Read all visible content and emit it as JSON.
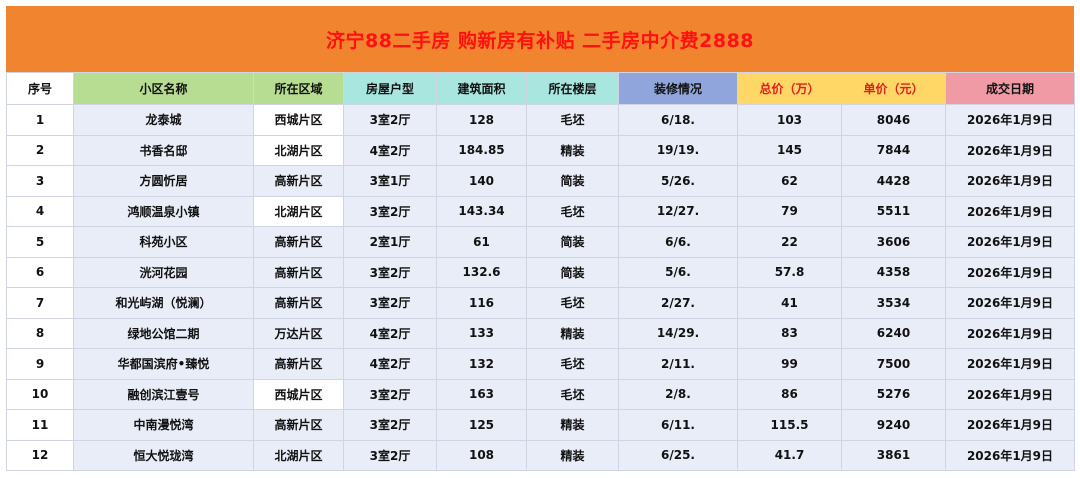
{
  "title": "济宁88二手房 购新房有补贴 二手房中介费2888",
  "headers": [
    "序号",
    "小区名称",
    "所在区域",
    "房屋户型",
    "建筑面积",
    "所在楼层",
    "装修情况",
    "总价（万）",
    "单价（元）",
    "成交日期"
  ],
  "rows": [
    [
      "1",
      "龙泰城",
      "西城片区",
      "3室2厅",
      "128",
      "毛坯",
      "6/18.",
      "103",
      "8046",
      "2026年1月9日"
    ],
    [
      "2",
      "书香名邸",
      "北湖片区",
      "4室2厅",
      "184.85",
      "精装",
      "19/19.",
      "145",
      "7844",
      "2026年1月9日"
    ],
    [
      "3",
      "方圆忻居",
      "高新片区",
      "3室1厅",
      "140",
      "简装",
      "5/26.",
      "62",
      "4428",
      "2026年1月9日"
    ],
    [
      "4",
      "鸿顺温泉小镇",
      "北湖片区",
      "3室2厅",
      "143.34",
      "毛坯",
      "12/27.",
      "79",
      "5511",
      "2026年1月9日"
    ],
    [
      "5",
      "科苑小区",
      "高新片区",
      "2室1厅",
      "61",
      "简装",
      "6/6.",
      "22",
      "3606",
      "2026年1月9日"
    ],
    [
      "6",
      "洸河花园",
      "高新片区",
      "3室2厅",
      "132.6",
      "简装",
      "5/6.",
      "57.8",
      "4358",
      "2026年1月9日"
    ],
    [
      "7",
      "和光屿湖（悦澜）",
      "高新片区",
      "3室2厅",
      "116",
      "毛坯",
      "2/27.",
      "41",
      "3534",
      "2026年1月9日"
    ],
    [
      "8",
      "绿地公馆二期",
      "万达片区",
      "4室2厅",
      "133",
      "精装",
      "14/29.",
      "83",
      "6240",
      "2026年1月9日"
    ],
    [
      "9",
      "华都国滨府•臻悦",
      "高新片区",
      "4室2厅",
      "132",
      "毛坯",
      "2/11.",
      "99",
      "7500",
      "2026年1月9日"
    ],
    [
      "10",
      "融创滨江壹号",
      "西城片区",
      "3室2厅",
      "163",
      "毛坯",
      "2/8.",
      "86",
      "5276",
      "2026年1月9日"
    ],
    [
      "11",
      "中南漫悦湾",
      "高新片区",
      "3室2厅",
      "125",
      "精装",
      "6/11.",
      "115.5",
      "9240",
      "2026年1月9日"
    ],
    [
      "12",
      "恒大悦珑湾",
      "北湖片区",
      "3室2厅",
      "108",
      "精装",
      "6/25.",
      "41.7",
      "3861",
      "2026年1月9日"
    ]
  ],
  "colors": {
    "title_bg": "#f0842f",
    "title_text": "#ff1111",
    "header_green": "#b7dd92",
    "header_cyan": "#a9e6e0",
    "header_blue": "#8fa5db",
    "header_yellow": "#ffd766",
    "header_pink": "#ef9aa5",
    "cell_bg": "#e8edf8"
  }
}
